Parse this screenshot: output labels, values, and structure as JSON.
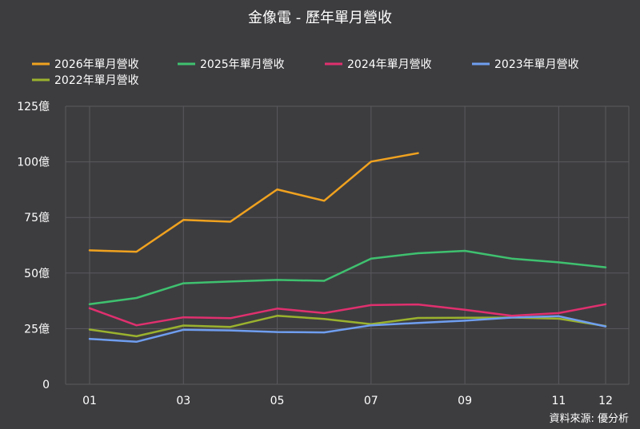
{
  "chart_data": {
    "type": "line",
    "title": "金像電 - 歷年單月營收",
    "source": "資料來源: 優分析",
    "xlabel": "",
    "ylabel": "",
    "categories": [
      "01",
      "02",
      "03",
      "04",
      "05",
      "06",
      "07",
      "08",
      "09",
      "10",
      "11",
      "12"
    ],
    "x_tick_labels": [
      "01",
      "",
      "03",
      "",
      "05",
      "",
      "07",
      "",
      "09",
      "",
      "11",
      "12"
    ],
    "y_ticks": [
      0,
      25,
      50,
      75,
      100,
      125
    ],
    "y_tick_labels": [
      "0",
      "25億",
      "50億",
      "75億",
      "100億",
      "125億"
    ],
    "ylim": [
      0,
      125
    ],
    "grid": true,
    "legend_position": "top",
    "series": [
      {
        "name": "2026年單月營收",
        "color": "#f0a21f",
        "values": [
          60.2,
          59.6,
          73.9,
          73.1,
          87.6,
          82.5,
          100.1,
          103.9,
          null,
          null,
          null,
          null
        ]
      },
      {
        "name": "2025年單月營收",
        "color": "#3fc16f",
        "values": [
          36.0,
          38.8,
          45.4,
          46.2,
          46.9,
          46.5,
          56.5,
          58.9,
          60.0,
          56.5,
          54.8,
          52.6
        ]
      },
      {
        "name": "2024年單月營收",
        "color": "#e0306e",
        "values": [
          34.2,
          26.5,
          30.1,
          29.7,
          34.0,
          32.0,
          35.6,
          35.9,
          33.5,
          30.8,
          32.0,
          36.0
        ]
      },
      {
        "name": "2023年單月營收",
        "color": "#6f9ef0",
        "values": [
          20.4,
          19.1,
          24.5,
          24.2,
          23.5,
          23.3,
          26.5,
          27.6,
          28.6,
          30.0,
          30.6,
          26.0
        ]
      },
      {
        "name": "2022年單月營收",
        "color": "#9ab22e",
        "values": [
          24.6,
          21.6,
          26.4,
          25.8,
          30.8,
          29.4,
          27.0,
          29.8,
          29.9,
          30.0,
          29.5,
          26.2
        ]
      }
    ]
  }
}
